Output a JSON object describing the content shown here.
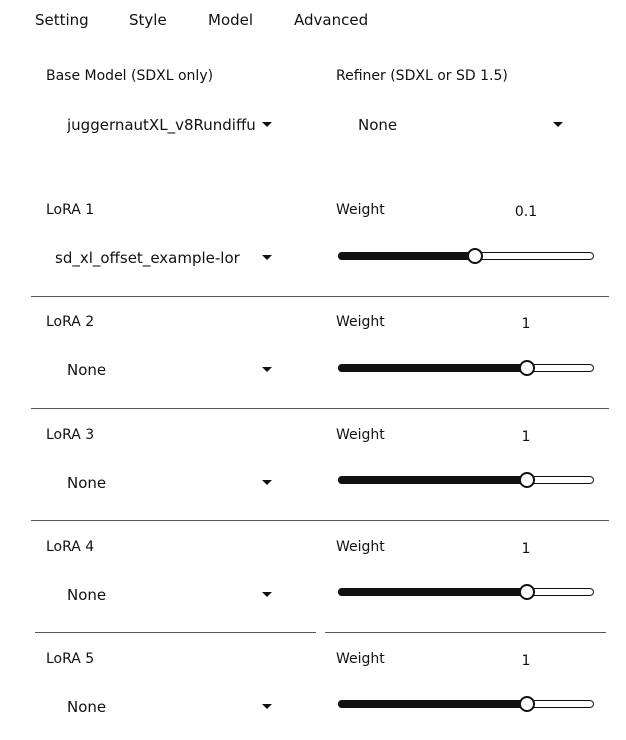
{
  "tabs": [
    {
      "label": "Setting"
    },
    {
      "label": "Style"
    },
    {
      "label": "Model"
    },
    {
      "label": "Advanced"
    }
  ],
  "base_model": {
    "label": "Base Model (SDXL only)",
    "value": "juggernautXL_v8Rundiffu"
  },
  "refiner": {
    "label": "Refiner (SDXL or SD 1.5)",
    "value": "None"
  },
  "weight_label": "Weight",
  "loras": [
    {
      "label": "LoRA 1",
      "model": "sd_xl_offset_example-lor",
      "weight_text": "0.1",
      "slider_fraction": 0.53
    },
    {
      "label": "LoRA 2",
      "model": "None",
      "weight_text": "1",
      "slider_fraction": 0.735
    },
    {
      "label": "LoRA 3",
      "model": "None",
      "weight_text": "1",
      "slider_fraction": 0.735
    },
    {
      "label": "LoRA 4",
      "model": "None",
      "weight_text": "1",
      "slider_fraction": 0.735
    },
    {
      "label": "LoRA 5",
      "model": "None",
      "weight_text": "1",
      "slider_fraction": 0.735
    }
  ],
  "icons": {
    "dropdown": "caret-down-icon"
  }
}
